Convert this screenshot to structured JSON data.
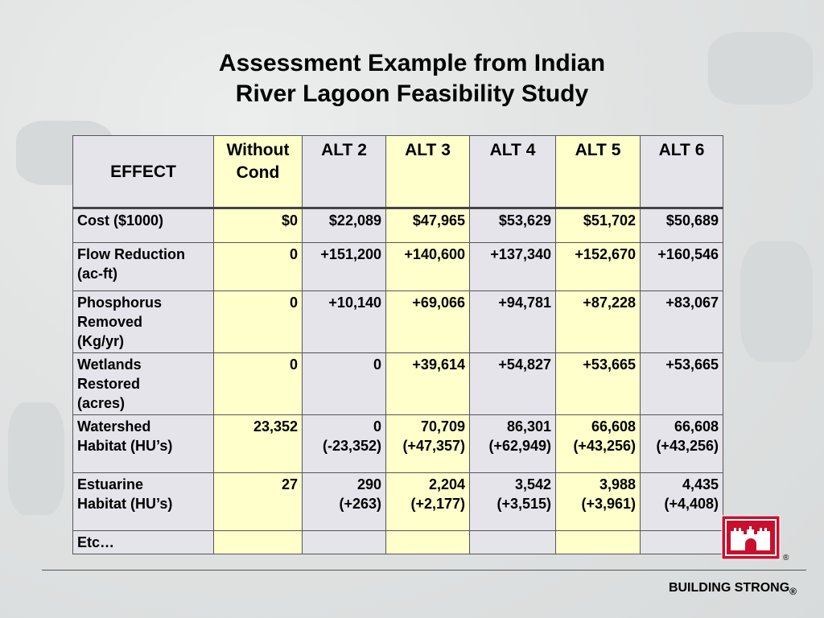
{
  "title": {
    "lines": [
      "Assessment Example from Indian",
      "River Lagoon Feasibility Study"
    ]
  },
  "table": {
    "header": [
      "EFFECT",
      "Without\nCond",
      "ALT 2",
      "ALT 3",
      "ALT 4",
      "ALT 5",
      "ALT 6"
    ],
    "rows": [
      [
        "Cost ($1000)",
        "$0",
        "$22,089",
        "$47,965",
        "$53,629",
        "$51,702",
        "$50,689"
      ],
      [
        "Flow Reduction\n(ac-ft)",
        "0",
        "+151,200",
        "+140,600",
        "+137,340",
        "+152,670",
        "+160,546"
      ],
      [
        "Phosphorus\nRemoved\n(Kg/yr)",
        "0",
        "+10,140",
        "+69,066",
        "+94,781",
        "+87,228",
        "+83,067"
      ],
      [
        "Wetlands\nRestored\n(acres)",
        "0",
        "0",
        "+39,614",
        "+54,827",
        "+53,665",
        "+53,665"
      ],
      [
        "Watershed\nHabitat (HU’s)",
        "23,352",
        "0\n(-23,352)",
        "70,709\n(+47,357)",
        "86,301\n(+62,949)",
        "66,608\n(+43,256)",
        "66,608\n(+43,256)"
      ],
      [
        "Estuarine\nHabitat (HU’s)",
        "27",
        "290\n(+263)",
        "2,204\n(+2,177)",
        "3,542\n(+3,515)",
        "3,988\n(+3,961)",
        "4,435\n(+4,408)"
      ],
      [
        "Etc…"
      ]
    ]
  },
  "logo": {
    "mark": "®"
  },
  "footer": {
    "text": "BUILDING STRONG",
    "mark": "®"
  }
}
